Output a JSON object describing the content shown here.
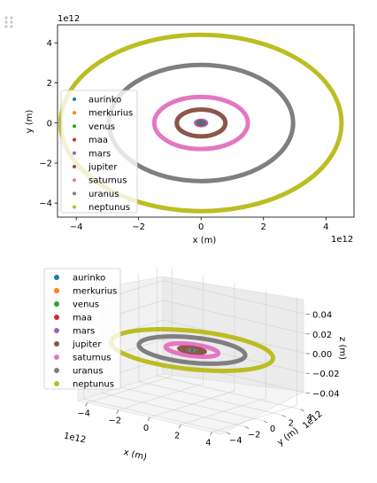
{
  "chart_data": [
    {
      "type": "scatter",
      "projection": "2d",
      "xlabel": "x (m)",
      "ylabel": "y (m)",
      "x_offset_label": "1e12",
      "y_offset_label": "1e12",
      "xlim": [
        -4.6,
        4.9
      ],
      "ylim": [
        -4.7,
        4.9
      ],
      "xticks": [
        -4,
        -2,
        0,
        2,
        4
      ],
      "yticks": [
        -4,
        -2,
        0,
        2,
        4
      ],
      "xtick_labels": [
        "−4",
        "−2",
        "0",
        "2",
        "4"
      ],
      "ytick_labels": [
        "−4",
        "−2",
        "0",
        "2",
        "4"
      ],
      "grid": false,
      "legend_position": "center-left",
      "series": [
        {
          "name": "aurinko",
          "color": "#1f77b4",
          "orbit_a": 0.001,
          "orbit_b": 0.001
        },
        {
          "name": "merkurius",
          "color": "#ff7f0e",
          "orbit_a": 0.06,
          "orbit_b": 0.05
        },
        {
          "name": "venus",
          "color": "#2ca02c",
          "orbit_a": 0.11,
          "orbit_b": 0.11
        },
        {
          "name": "maa",
          "color": "#d62728",
          "orbit_a": 0.15,
          "orbit_b": 0.15
        },
        {
          "name": "mars",
          "color": "#9467bd",
          "orbit_a": 0.23,
          "orbit_b": 0.22
        },
        {
          "name": "jupiter",
          "color": "#8c564b",
          "orbit_a": 0.78,
          "orbit_b": 0.67
        },
        {
          "name": "saturnus",
          "color": "#e377c2",
          "orbit_a": 1.5,
          "orbit_b": 1.3
        },
        {
          "name": "uranus",
          "color": "#7f7f7f",
          "orbit_a": 2.95,
          "orbit_b": 2.9
        },
        {
          "name": "neptunus",
          "color": "#bcbd22",
          "orbit_a": 4.5,
          "orbit_b": 4.4
        }
      ]
    },
    {
      "type": "scatter",
      "projection": "3d",
      "xlabel": "x (m)",
      "ylabel": "y (m)",
      "zlabel": "z (m)",
      "x_offset_label": "1e12",
      "y_offset_label": "1e12",
      "xlim": [
        -4.6,
        4.6
      ],
      "ylim": [
        -4.6,
        4.6
      ],
      "zlim": [
        -0.055,
        0.055
      ],
      "xticks": [
        -4,
        -2,
        0,
        2,
        4
      ],
      "yticks": [
        -4,
        -2,
        0,
        2,
        4
      ],
      "zticks": [
        -0.04,
        -0.02,
        0.0,
        0.02,
        0.04
      ],
      "xtick_labels": [
        "−4",
        "−2",
        "0",
        "2",
        "4"
      ],
      "ytick_labels": [
        "−4",
        "−2",
        "0",
        "2",
        "4"
      ],
      "ztick_labels": [
        "−0.04",
        "−0.02",
        "0.00",
        "0.02",
        "0.04"
      ],
      "grid": true,
      "legend_position": "upper-left",
      "series": [
        {
          "name": "aurinko",
          "color": "#1f77b4",
          "orbit_a": 0.001,
          "orbit_b": 0.001
        },
        {
          "name": "merkurius",
          "color": "#ff7f0e",
          "orbit_a": 0.06,
          "orbit_b": 0.05
        },
        {
          "name": "venus",
          "color": "#2ca02c",
          "orbit_a": 0.11,
          "orbit_b": 0.11
        },
        {
          "name": "maa",
          "color": "#d62728",
          "orbit_a": 0.15,
          "orbit_b": 0.15
        },
        {
          "name": "mars",
          "color": "#9467bd",
          "orbit_a": 0.23,
          "orbit_b": 0.22
        },
        {
          "name": "jupiter",
          "color": "#8c564b",
          "orbit_a": 0.78,
          "orbit_b": 0.67
        },
        {
          "name": "saturnus",
          "color": "#e377c2",
          "orbit_a": 1.5,
          "orbit_b": 1.3
        },
        {
          "name": "uranus",
          "color": "#7f7f7f",
          "orbit_a": 2.95,
          "orbit_b": 2.9
        },
        {
          "name": "neptunus",
          "color": "#bcbd22",
          "orbit_a": 4.5,
          "orbit_b": 4.4
        }
      ]
    }
  ],
  "ui": {
    "drag_handle_icon": "drag-handle-icon"
  }
}
